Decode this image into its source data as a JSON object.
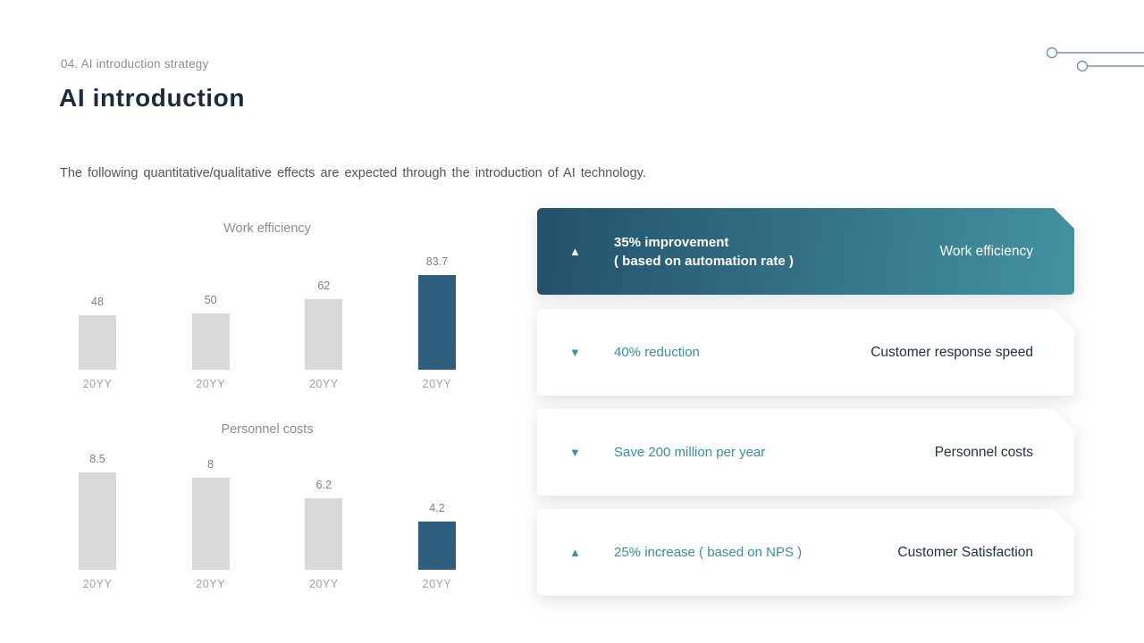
{
  "header": {
    "eyebrow": "04. AI introduction strategy",
    "title": "AI introduction",
    "subtitle": "The following quantitative/qualitative  effects are expected through the introduction of AI technology."
  },
  "colors": {
    "accent_teal": "#3a8fa2",
    "bar_gray": "#d9d9d9",
    "bar_highlight": "#2e5f7e",
    "card_gradient_start": "#23506b",
    "card_gradient_end": "#4392a2",
    "dark_text": "#1d3142",
    "decor_line": "#7296ab"
  },
  "chart_data": [
    {
      "type": "bar",
      "title": "Work efficiency",
      "categories": [
        "20YY",
        "20YY",
        "20YY",
        "20YY"
      ],
      "values": [
        48,
        50,
        62,
        83.7
      ],
      "highlight_index": 3,
      "bar_color": "#d9d9d9",
      "highlight_color": "#2e5f7e",
      "grid": false,
      "value_labels": [
        "48",
        "50",
        "62",
        "83.7"
      ]
    },
    {
      "type": "bar",
      "title": "Personnel costs",
      "categories": [
        "20YY",
        "20YY",
        "20YY",
        "20YY"
      ],
      "values": [
        8.5,
        8,
        6.2,
        4.2
      ],
      "highlight_index": 3,
      "bar_color": "#d9d9d9",
      "highlight_color": "#2e5f7e",
      "grid": false,
      "value_labels": [
        "8.5",
        "8",
        "6.2",
        "4.2"
      ]
    }
  ],
  "cards": [
    {
      "variant": "dark",
      "direction": "up",
      "metric": "35% improvement",
      "metric_sub": "( based on automation rate )",
      "label": "Work efficiency"
    },
    {
      "variant": "light",
      "direction": "down",
      "metric": "40% reduction",
      "metric_sub": "",
      "label": "Customer response speed"
    },
    {
      "variant": "light",
      "direction": "down",
      "metric": "Save 200 million per year",
      "metric_sub": "",
      "label": "Personnel costs"
    },
    {
      "variant": "light",
      "direction": "up",
      "metric": "25% increase ( based on NPS )",
      "metric_sub": "",
      "label": "Customer Satisfaction"
    }
  ]
}
